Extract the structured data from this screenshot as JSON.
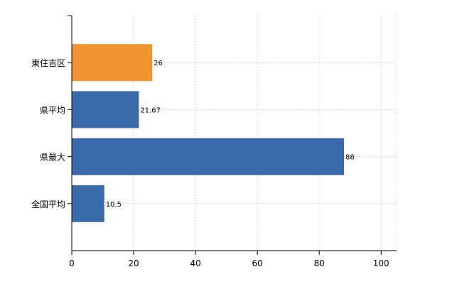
{
  "chart_data": {
    "type": "bar",
    "orientation": "horizontal",
    "categories": [
      "東住吉区",
      "県平均",
      "県最大",
      "全国平均"
    ],
    "values": [
      26,
      21.67,
      88,
      10.5
    ],
    "data_labels": [
      "26",
      "21.67",
      "88",
      "10.5"
    ],
    "bar_colors": [
      "#f0922f",
      "#3a6aaa",
      "#3a6aaa",
      "#3a6aaa"
    ],
    "xlim": [
      0,
      105
    ],
    "xticks": [
      0,
      20,
      40,
      60,
      80,
      100
    ],
    "grid": true,
    "title": "",
    "xlabel": "",
    "ylabel": ""
  }
}
